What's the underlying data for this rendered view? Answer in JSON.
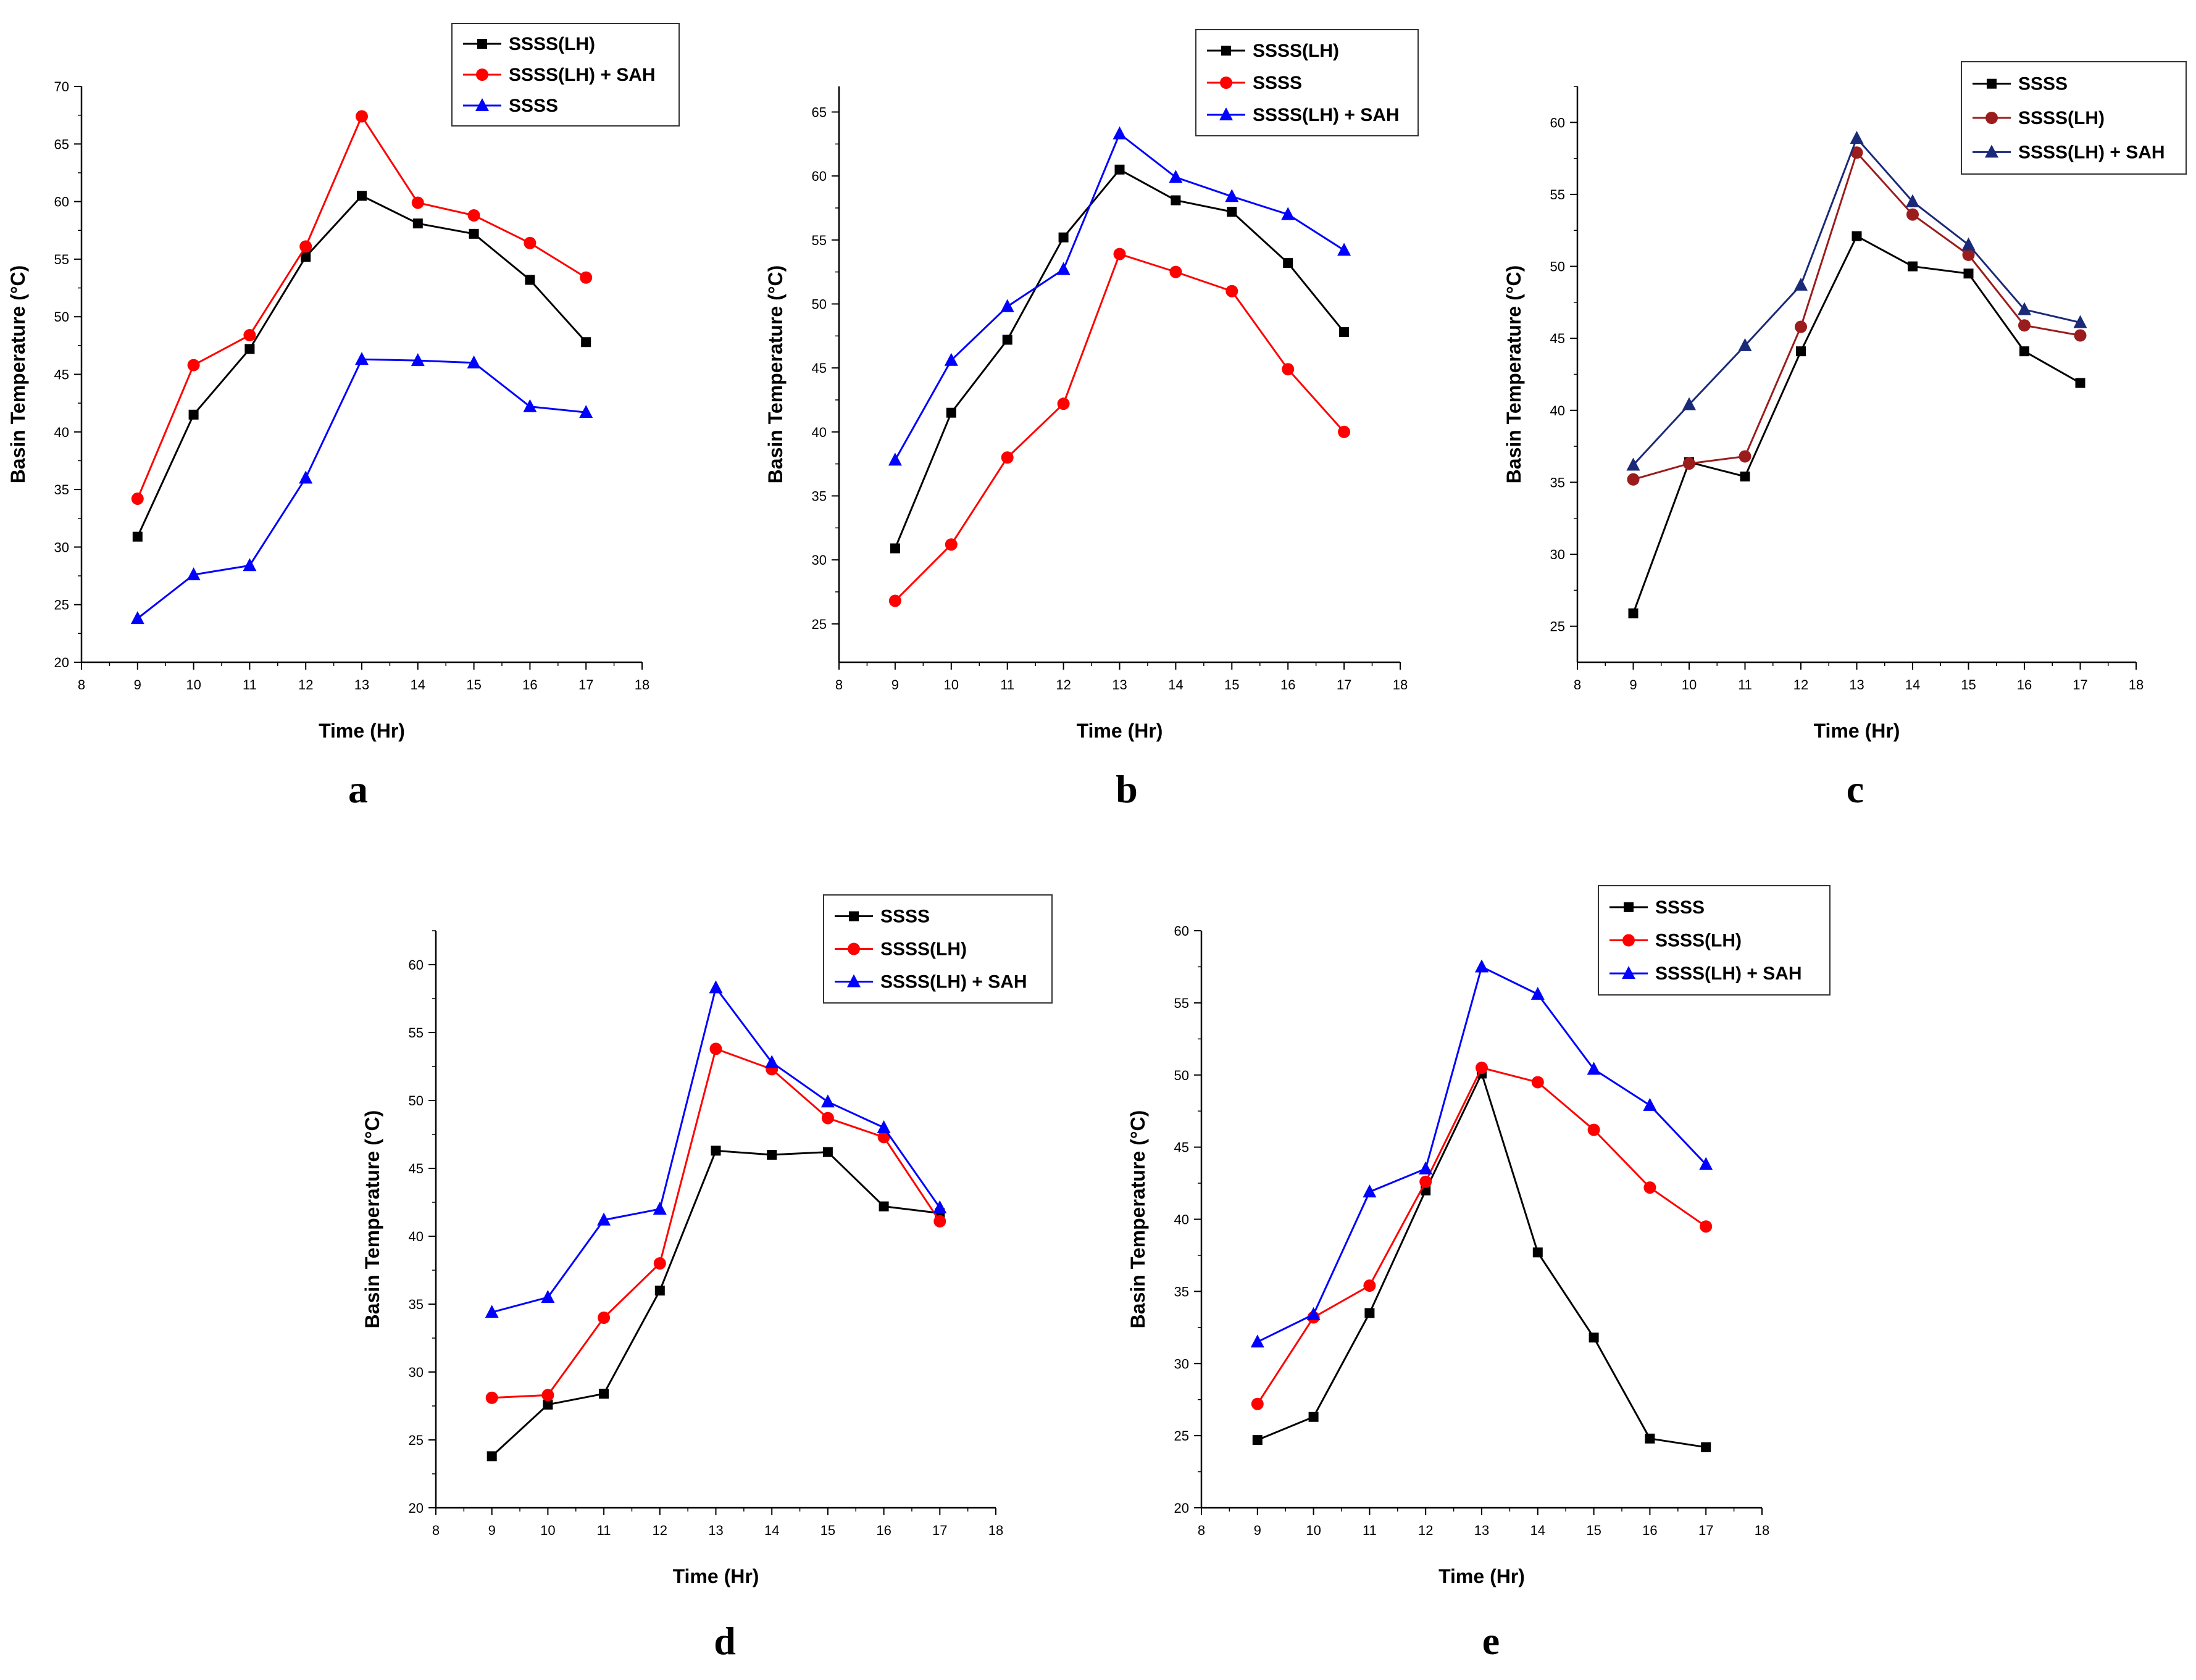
{
  "colors": {
    "black": "#000000",
    "red": "#ff0000",
    "blue": "#0000ff",
    "dark_red": "#9b1c1c",
    "navy": "#1a2a78"
  },
  "chart_data": [
    {
      "panel": "a",
      "type": "line",
      "xlabel": "Time (Hr)",
      "ylabel": "Basin Temperature (°C)",
      "xlim": [
        8,
        18
      ],
      "ylim": [
        20,
        70
      ],
      "xticks": [
        "8",
        "9",
        "10",
        "11",
        "12",
        "13",
        "14",
        "15",
        "16",
        "17",
        "18"
      ],
      "yticks": [
        "20",
        "25",
        "30",
        "35",
        "40",
        "45",
        "50",
        "55",
        "60",
        "65",
        "70"
      ],
      "x": [
        9,
        10,
        11,
        12,
        13,
        14,
        15,
        16,
        17
      ],
      "legend_position": "top-right",
      "series": [
        {
          "name": "SSSS(LH)",
          "color": "#000000",
          "marker": "square",
          "values": [
            30.9,
            41.5,
            47.2,
            55.2,
            60.5,
            58.1,
            57.2,
            53.2,
            47.8
          ]
        },
        {
          "name": "SSSS(LH) + SAH",
          "color": "#ff0000",
          "marker": "circle",
          "values": [
            34.2,
            45.8,
            48.4,
            56.1,
            67.4,
            59.9,
            58.8,
            56.4,
            53.4
          ]
        },
        {
          "name": "SSSS",
          "color": "#0000ff",
          "marker": "triangle",
          "values": [
            23.8,
            27.6,
            28.4,
            36.0,
            46.3,
            46.2,
            46.0,
            42.2,
            41.7
          ]
        }
      ]
    },
    {
      "panel": "b",
      "type": "line",
      "xlabel": "Time (Hr)",
      "ylabel": "Basin Temperature (°C)",
      "xlim": [
        8,
        18
      ],
      "ylim": [
        22,
        67
      ],
      "xticks": [
        "8",
        "9",
        "10",
        "11",
        "12",
        "13",
        "14",
        "15",
        "16",
        "17",
        "18"
      ],
      "yticks": [
        "25",
        "30",
        "35",
        "40",
        "45",
        "50",
        "55",
        "60",
        "65"
      ],
      "x": [
        9,
        10,
        11,
        12,
        13,
        14,
        15,
        16,
        17
      ],
      "legend_position": "top-right",
      "series": [
        {
          "name": "SSSS(LH)",
          "color": "#000000",
          "marker": "square",
          "values": [
            30.9,
            41.5,
            47.2,
            55.2,
            60.5,
            58.1,
            57.2,
            53.2,
            47.8
          ]
        },
        {
          "name": "SSSS",
          "color": "#ff0000",
          "marker": "circle",
          "values": [
            26.8,
            31.2,
            38.0,
            42.2,
            53.9,
            52.5,
            51.0,
            44.9,
            40.0
          ]
        },
        {
          "name": "SSSS(LH) + SAH",
          "color": "#0000ff",
          "marker": "triangle",
          "values": [
            37.8,
            45.6,
            49.8,
            52.7,
            63.3,
            59.9,
            58.4,
            57.0,
            54.2
          ]
        }
      ]
    },
    {
      "panel": "c",
      "type": "line",
      "xlabel": "Time (Hr)",
      "ylabel": "Basin Temperature (°C)",
      "xlim": [
        8,
        18
      ],
      "ylim": [
        22.5,
        62.5
      ],
      "xticks": [
        "8",
        "9",
        "10",
        "11",
        "12",
        "13",
        "14",
        "15",
        "16",
        "17",
        "18"
      ],
      "yticks": [
        "25",
        "30",
        "35",
        "40",
        "45",
        "50",
        "55",
        "60"
      ],
      "x": [
        9,
        10,
        11,
        12,
        13,
        14,
        15,
        16,
        17
      ],
      "legend_position": "top-right",
      "series": [
        {
          "name": "SSSS",
          "color": "#000000",
          "marker": "square",
          "values": [
            25.9,
            36.4,
            35.4,
            44.1,
            52.1,
            50.0,
            49.5,
            44.1,
            41.9
          ]
        },
        {
          "name": "SSSS(LH)",
          "color": "#9b1c1c",
          "marker": "circle",
          "values": [
            35.2,
            36.3,
            36.8,
            45.8,
            57.9,
            53.6,
            50.8,
            45.9,
            45.2
          ]
        },
        {
          "name": "SSSS(LH) + SAH",
          "color": "#1a2a78",
          "marker": "triangle",
          "values": [
            36.2,
            40.4,
            44.5,
            48.7,
            58.9,
            54.5,
            51.5,
            47.0,
            46.1
          ]
        }
      ]
    },
    {
      "panel": "d",
      "type": "line",
      "xlabel": "Time (Hr)",
      "ylabel": "Basin Temperature (°C)",
      "xlim": [
        8,
        18
      ],
      "ylim": [
        20,
        62.5
      ],
      "xticks": [
        "8",
        "9",
        "10",
        "11",
        "12",
        "13",
        "14",
        "15",
        "16",
        "17",
        "18"
      ],
      "yticks": [
        "20",
        "25",
        "30",
        "35",
        "40",
        "45",
        "50",
        "55",
        "60"
      ],
      "x": [
        9,
        10,
        11,
        12,
        13,
        14,
        15,
        16,
        17
      ],
      "legend_position": "top-right",
      "series": [
        {
          "name": "SSSS",
          "color": "#000000",
          "marker": "square",
          "values": [
            23.8,
            27.6,
            28.4,
            36.0,
            46.3,
            46.0,
            46.2,
            42.2,
            41.7
          ]
        },
        {
          "name": "SSSS(LH)",
          "color": "#ff0000",
          "marker": "circle",
          "values": [
            28.1,
            28.3,
            34.0,
            38.0,
            53.8,
            52.3,
            48.7,
            47.3,
            41.1
          ]
        },
        {
          "name": "SSSS(LH) + SAH",
          "color": "#0000ff",
          "marker": "triangle",
          "values": [
            34.4,
            35.5,
            41.2,
            42.0,
            58.3,
            52.8,
            49.9,
            48.0,
            42.1
          ]
        }
      ]
    },
    {
      "panel": "e",
      "type": "line",
      "xlabel": "Time (Hr)",
      "ylabel": "Basin Temperature (°C)",
      "xlim": [
        8,
        18
      ],
      "ylim": [
        20,
        60
      ],
      "xticks": [
        "8",
        "9",
        "10",
        "11",
        "12",
        "13",
        "14",
        "15",
        "16",
        "17",
        "18"
      ],
      "yticks": [
        "20",
        "25",
        "30",
        "35",
        "40",
        "45",
        "50",
        "55",
        "60"
      ],
      "x": [
        9,
        10,
        11,
        12,
        13,
        14,
        15,
        16,
        17
      ],
      "legend_position": "top-right",
      "series": [
        {
          "name": "SSSS",
          "color": "#000000",
          "marker": "square",
          "values": [
            24.7,
            26.3,
            33.5,
            42.0,
            50.1,
            37.7,
            31.8,
            24.8,
            24.2
          ]
        },
        {
          "name": "SSSS(LH)",
          "color": "#ff0000",
          "marker": "circle",
          "values": [
            27.2,
            33.2,
            35.4,
            42.6,
            50.5,
            49.5,
            46.2,
            42.2,
            39.5
          ]
        },
        {
          "name": "SSSS(LH) + SAH",
          "color": "#0000ff",
          "marker": "triangle",
          "values": [
            31.5,
            33.4,
            41.9,
            43.5,
            57.5,
            55.6,
            50.4,
            47.9,
            43.8
          ]
        }
      ]
    }
  ]
}
